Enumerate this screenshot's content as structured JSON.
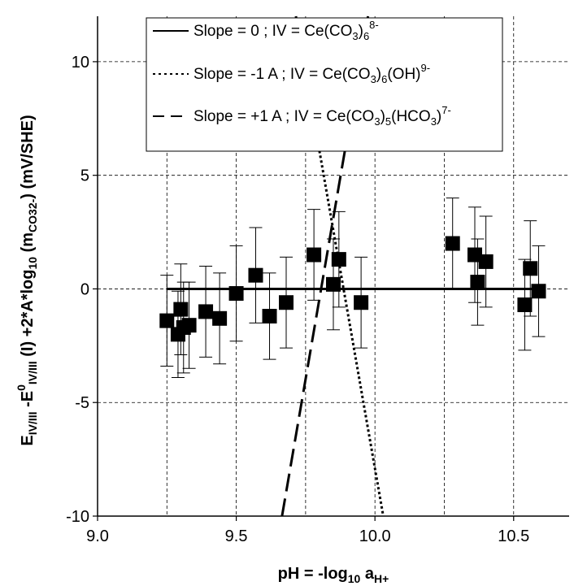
{
  "chart_data": {
    "type": "scatter",
    "xlabel": {
      "base": "pH = -log",
      "sub1": "10",
      "mid": " a",
      "sub2": "H+"
    },
    "ylabel": {
      "p1": "E",
      "p1sub": "IV/III",
      "p2": " -E",
      "p2sup": "0",
      "p2sub": "IV/III",
      "p3": " (I) +2*A*log",
      "p3sub": "10",
      "p4": " (m",
      "p4sub": "CO32-",
      "p5": ") (mV/SHE)"
    },
    "xlim": [
      9.0,
      10.7
    ],
    "ylim": [
      -10,
      12
    ],
    "xticks": [
      "9.0",
      "9.5",
      "10.0",
      "10.5"
    ],
    "xtick_values": [
      9.0,
      9.5,
      10.0,
      10.5
    ],
    "yticks": [
      "-10",
      "-5",
      "0",
      "5",
      "10"
    ],
    "ytick_values": [
      -10,
      -5,
      0,
      5,
      10
    ],
    "grid": true,
    "legend_position": "top-center",
    "points": [
      {
        "x": 9.25,
        "y": -1.4,
        "err": 2.0
      },
      {
        "x": 9.29,
        "y": -2.0,
        "err": 1.9
      },
      {
        "x": 9.3,
        "y": -0.9,
        "err": 2.0
      },
      {
        "x": 9.31,
        "y": -1.7,
        "err": 2.0
      },
      {
        "x": 9.33,
        "y": -1.6,
        "err": 1.9
      },
      {
        "x": 9.39,
        "y": -1.0,
        "err": 2.0
      },
      {
        "x": 9.44,
        "y": -1.3,
        "err": 2.0
      },
      {
        "x": 9.5,
        "y": -0.2,
        "err": 2.1
      },
      {
        "x": 9.57,
        "y": 0.6,
        "err": 2.1
      },
      {
        "x": 9.62,
        "y": -1.2,
        "err": 1.9
      },
      {
        "x": 9.68,
        "y": -0.6,
        "err": 2.0
      },
      {
        "x": 9.78,
        "y": 1.5,
        "err": 2.0
      },
      {
        "x": 9.85,
        "y": 0.2,
        "err": 2.0
      },
      {
        "x": 9.87,
        "y": 1.3,
        "err": 2.1
      },
      {
        "x": 9.95,
        "y": -0.6,
        "err": 2.0
      },
      {
        "x": 10.28,
        "y": 2.0,
        "err": 2.0
      },
      {
        "x": 10.36,
        "y": 1.5,
        "err": 2.1
      },
      {
        "x": 10.37,
        "y": 0.3,
        "err": 1.9
      },
      {
        "x": 10.4,
        "y": 1.2,
        "err": 2.0
      },
      {
        "x": 10.54,
        "y": -0.7,
        "err": 2.0
      },
      {
        "x": 10.56,
        "y": 0.9,
        "err": 2.1
      },
      {
        "x": 10.59,
        "y": -0.1,
        "err": 2.0
      }
    ],
    "series": [
      {
        "style": "solid",
        "x": [
          9.25,
          10.6
        ],
        "y": [
          0,
          0
        ],
        "legend": {
          "label": "Slope =   0    ; IV = Ce(CO",
          "sub": "3",
          "after": ")",
          "sub2": "6",
          "sup": "8-",
          "tail": ""
        }
      },
      {
        "style": "dotted",
        "x": [
          9.715,
          10.03
        ],
        "y": [
          12,
          -10
        ],
        "legend": {
          "label": "Slope = -1 A  ; IV = Ce(CO",
          "sub": "3",
          "after": ")",
          "sub2": "6",
          "sup": "9-",
          "tail": "(OH)"
        }
      },
      {
        "style": "dashed",
        "x": [
          9.665,
          9.975
        ],
        "y": [
          -10,
          12
        ],
        "legend": {
          "label": "Slope = +1 A ; IV = Ce(CO",
          "sub": "3",
          "after": ")",
          "sub2": "5",
          "sup": "7-",
          "tail": "(HCO",
          "tailsub": "3",
          "tailafter": ")"
        }
      }
    ]
  }
}
